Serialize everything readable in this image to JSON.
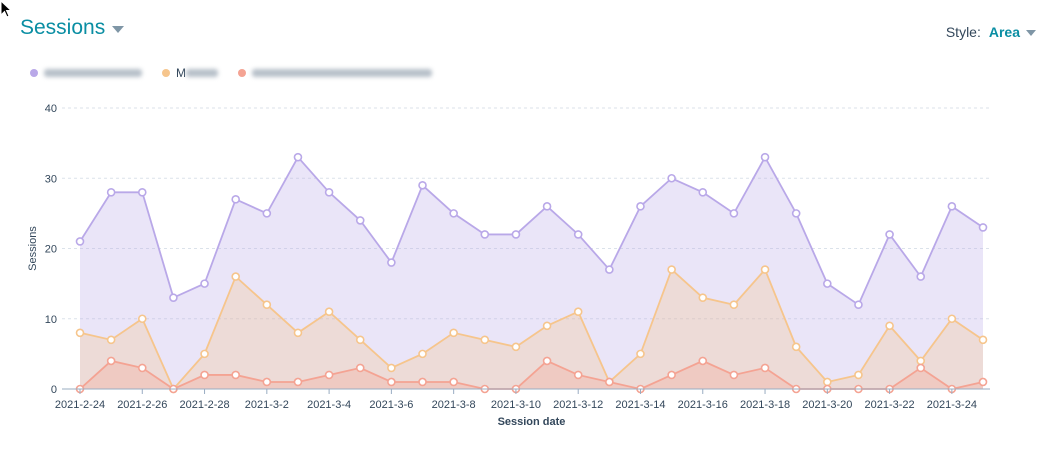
{
  "header": {
    "title": "Sessions"
  },
  "style_control": {
    "label": "Style:",
    "value": "Area"
  },
  "legend": [
    {
      "label": "",
      "color": "#b9a8e8"
    },
    {
      "label": "M",
      "color": "#f6c58c"
    },
    {
      "label": "",
      "color": "#f4a393"
    }
  ],
  "chart_data": {
    "type": "area",
    "title": "",
    "xlabel": "Session date",
    "ylabel": "Sessions",
    "ylim": [
      0,
      40
    ],
    "yticks": [
      0,
      10,
      20,
      30,
      40
    ],
    "grid": true,
    "x": [
      "2021-2-24",
      "2021-2-25",
      "2021-2-26",
      "2021-2-27",
      "2021-2-28",
      "2021-3-1",
      "2021-3-2",
      "2021-3-3",
      "2021-3-4",
      "2021-3-5",
      "2021-3-6",
      "2021-3-7",
      "2021-3-8",
      "2021-3-9",
      "2021-3-10",
      "2021-3-11",
      "2021-3-12",
      "2021-3-13",
      "2021-3-14",
      "2021-3-15",
      "2021-3-16",
      "2021-3-17",
      "2021-3-18",
      "2021-3-19",
      "2021-3-20",
      "2021-3-21",
      "2021-3-22",
      "2021-3-23",
      "2021-3-24",
      "2021-3-25"
    ],
    "xticks": [
      "2021-2-24",
      "2021-2-26",
      "2021-2-28",
      "2021-3-2",
      "2021-3-4",
      "2021-3-6",
      "2021-3-8",
      "2021-3-10",
      "2021-3-12",
      "2021-3-14",
      "2021-3-16",
      "2021-3-18",
      "2021-3-20",
      "2021-3-22",
      "2021-3-24"
    ],
    "series": [
      {
        "color": "#b9a8e8",
        "values": [
          21,
          28,
          28,
          13,
          15,
          27,
          25,
          33,
          28,
          24,
          18,
          29,
          25,
          22,
          22,
          26,
          22,
          17,
          26,
          30,
          28,
          25,
          33,
          25,
          15,
          12,
          22,
          16,
          26,
          23
        ]
      },
      {
        "color": "#f6c58c",
        "values": [
          8,
          7,
          10,
          0,
          5,
          16,
          12,
          8,
          11,
          7,
          3,
          5,
          8,
          7,
          6,
          9,
          11,
          1,
          5,
          17,
          13,
          12,
          17,
          6,
          1,
          2,
          9,
          4,
          10,
          7
        ]
      },
      {
        "color": "#f4a393",
        "values": [
          0,
          4,
          3,
          0,
          2,
          2,
          1,
          1,
          2,
          3,
          1,
          1,
          1,
          0,
          0,
          4,
          2,
          1,
          0,
          2,
          4,
          2,
          3,
          0,
          0,
          0,
          0,
          3,
          0,
          1
        ]
      }
    ]
  }
}
